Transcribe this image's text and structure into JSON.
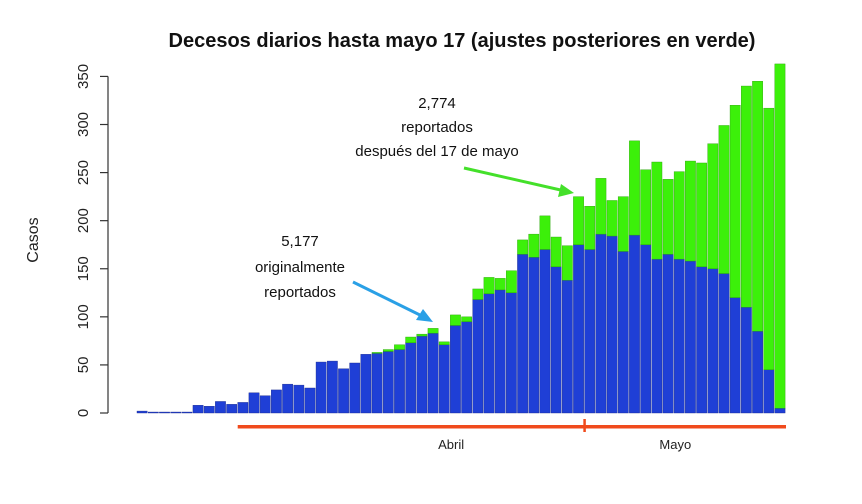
{
  "chart_data": {
    "type": "bar",
    "stacked": true,
    "title": "Decesos diarios hasta mayo 17 (ajustes posteriores en verde)",
    "ylabel": "Casos",
    "xlabel": "",
    "ylim": [
      0,
      365
    ],
    "yticks": [
      0,
      50,
      100,
      150,
      200,
      250,
      300,
      350
    ],
    "colors": {
      "original": "#1f3fd6",
      "adjusted": "#3cf00a",
      "month_bar": "#f04a1c",
      "arrow_blue": "#2aa0e6",
      "arrow_green": "#44e02a"
    },
    "series": [
      {
        "name": "originalmente reportados",
        "color": "#1f3fd6",
        "values": [
          2,
          1,
          1,
          1,
          1,
          8,
          7,
          12,
          9,
          11,
          21,
          18,
          24,
          30,
          29,
          26,
          53,
          54,
          46,
          52,
          61,
          62,
          64,
          66,
          73,
          80,
          83,
          71,
          91,
          95,
          118,
          124,
          128,
          125,
          165,
          162,
          170,
          152,
          138,
          175,
          170,
          186,
          184,
          168,
          185,
          175,
          160,
          165,
          160,
          158,
          152,
          150,
          145,
          120,
          110,
          85,
          45,
          5
        ]
      },
      {
        "name": "ajustes posteriores",
        "color": "#3cf00a",
        "values": [
          0,
          0,
          0,
          0,
          0,
          0,
          0,
          0,
          0,
          0,
          0,
          0,
          0,
          0,
          0,
          0,
          0,
          0,
          0,
          0,
          0,
          1,
          2,
          5,
          6,
          2,
          5,
          3,
          11,
          5,
          11,
          17,
          12,
          23,
          15,
          24,
          35,
          31,
          36,
          50,
          45,
          58,
          37,
          57,
          98,
          78,
          101,
          78,
          91,
          104,
          108,
          130,
          154,
          200,
          230,
          260,
          272,
          358
        ]
      }
    ],
    "annotations": [
      {
        "value": "5,177",
        "line1": "originalmente",
        "line2": "reportados",
        "series": "original"
      },
      {
        "value": "2,774",
        "line1": "reportados",
        "line2": "después del 17 de mayo",
        "series": "adjusted"
      }
    ],
    "months": [
      {
        "label": "Abril",
        "start_index": 9,
        "end_index": 39
      },
      {
        "label": "Mayo",
        "start_index": 40,
        "end_index": 57
      }
    ]
  }
}
